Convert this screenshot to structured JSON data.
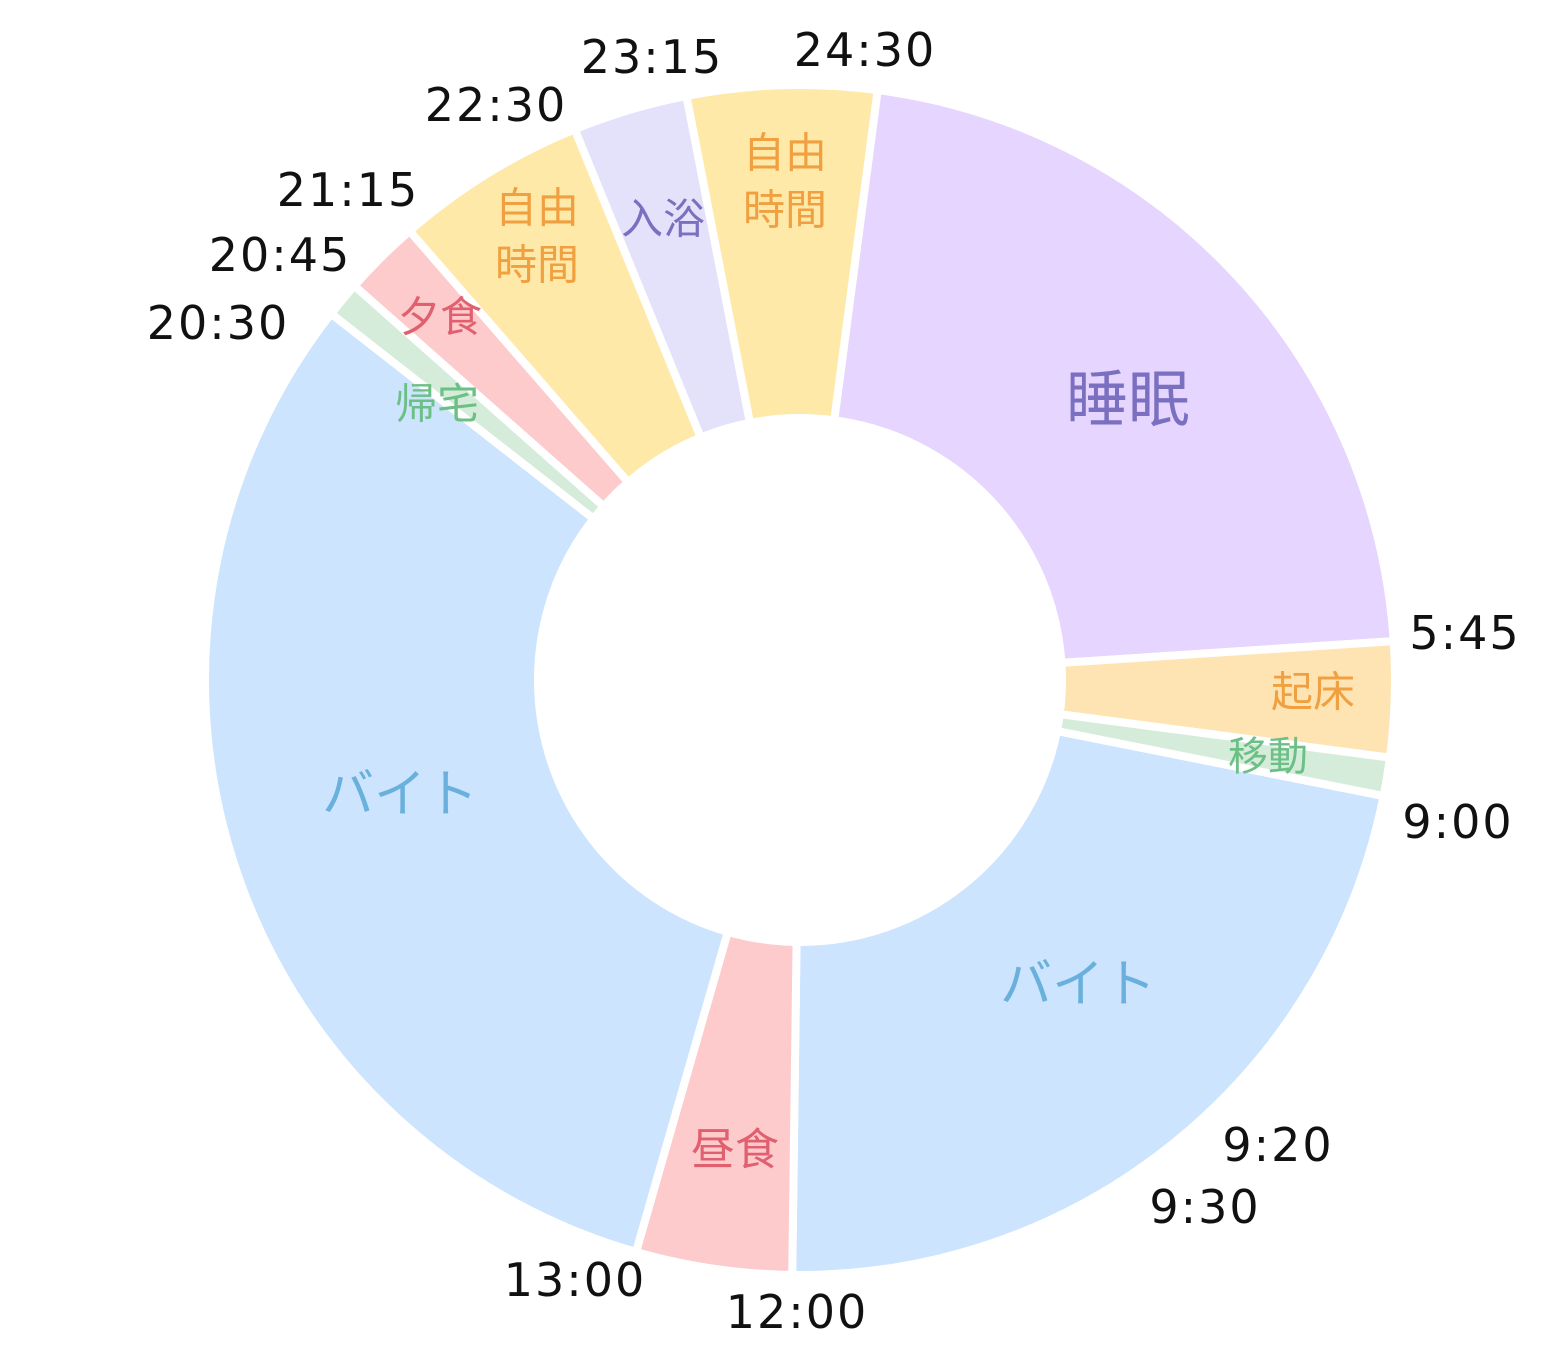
{
  "chart_data": {
    "type": "donut",
    "categories": [
      "睡眠",
      "起床",
      "移動",
      "バイト",
      "昼食",
      "バイト",
      "帰宅",
      "夕食",
      "自由時間",
      "入浴",
      "自由時間"
    ],
    "values": [
      315,
      45,
      15,
      318,
      61,
      448,
      14,
      30,
      75,
      45,
      74
    ],
    "colors": [
      "#e5d5ff",
      "#ffe4b3",
      "#d4ecd9",
      "#cce4fd",
      "#fdcbcc",
      "#cce4fd",
      "#d4ecd9",
      "#fdcbcc",
      "#fee9a8",
      "#e4e2fb",
      "#fee9a8"
    ],
    "label_colors": [
      "#7b6fc0",
      "#f0a040",
      "#6cbf85",
      "#6ab0dc",
      "#e06070",
      "#6ab0dc",
      "#6cbf85",
      "#e06070",
      "#f0a040",
      "#7b6fc0",
      "#f0a040"
    ],
    "start_angle": 7.5,
    "time_labels": [
      "24:30",
      "23:15",
      "22:30",
      "21:15",
      "20:45",
      "20:30",
      "5:45",
      "9:00",
      "9:20",
      "9:30",
      "12:00",
      "13:00"
    ]
  }
}
